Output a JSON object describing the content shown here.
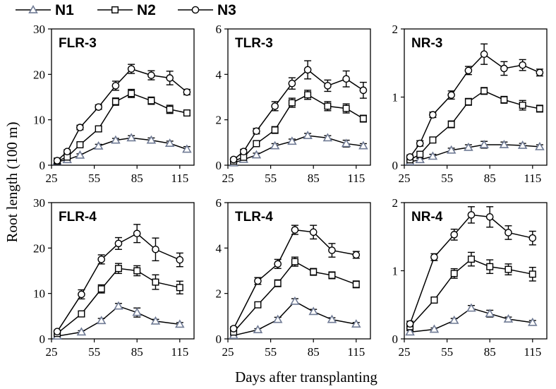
{
  "figure": {
    "ylabel": "Root length (100 m)",
    "xlabel": "Days after transplanting",
    "legend": [
      {
        "name": "N1",
        "marker": "triangle",
        "color": "#6f7a94"
      },
      {
        "name": "N2",
        "marker": "square",
        "color": "#000000"
      },
      {
        "name": "N3",
        "marker": "circle",
        "color": "#000000"
      }
    ]
  },
  "chart_data": [
    {
      "type": "line",
      "title": "FLR-3",
      "xlim": [
        25,
        125
      ],
      "xticks": [
        25,
        55,
        85,
        115
      ],
      "ylim": [
        0,
        30
      ],
      "yticks": [
        0,
        10,
        20,
        30
      ],
      "x": [
        29,
        36,
        45,
        58,
        70,
        81,
        95,
        108,
        120
      ],
      "series": [
        {
          "name": "N1",
          "values": [
            0.8,
            1.2,
            2.2,
            4.2,
            5.5,
            6.0,
            5.5,
            4.8,
            3.5
          ],
          "errors": [
            0.2,
            0.3,
            0.3,
            0.4,
            0.4,
            0.5,
            0.5,
            0.5,
            0.6
          ]
        },
        {
          "name": "N2",
          "values": [
            0.9,
            1.8,
            4.5,
            8.0,
            14.0,
            15.8,
            14.2,
            12.3,
            11.5
          ],
          "errors": [
            0.2,
            0.3,
            0.4,
            0.6,
            0.8,
            0.9,
            0.8,
            0.9,
            0.6
          ]
        },
        {
          "name": "N3",
          "values": [
            1.0,
            3.0,
            8.3,
            12.8,
            17.5,
            21.2,
            19.8,
            19.2,
            16.1
          ],
          "errors": [
            0.2,
            0.4,
            0.5,
            0.5,
            1.0,
            1.0,
            1.0,
            1.5,
            0.6
          ]
        }
      ]
    },
    {
      "type": "line",
      "title": "TLR-3",
      "xlim": [
        25,
        125
      ],
      "xticks": [
        25,
        55,
        85,
        115
      ],
      "ylim": [
        0,
        6
      ],
      "yticks": [
        0,
        2,
        4,
        6
      ],
      "x": [
        29,
        36,
        45,
        58,
        70,
        81,
        95,
        108,
        120
      ],
      "series": [
        {
          "name": "N1",
          "values": [
            0.1,
            0.25,
            0.45,
            0.85,
            1.05,
            1.3,
            1.2,
            0.95,
            0.85
          ],
          "errors": [
            0.05,
            0.05,
            0.08,
            0.1,
            0.1,
            0.1,
            0.1,
            0.15,
            0.1
          ]
        },
        {
          "name": "N2",
          "values": [
            0.18,
            0.35,
            0.95,
            1.55,
            2.75,
            3.1,
            2.6,
            2.5,
            2.05
          ],
          "errors": [
            0.05,
            0.08,
            0.1,
            0.15,
            0.2,
            0.2,
            0.2,
            0.2,
            0.15
          ]
        },
        {
          "name": "N3",
          "values": [
            0.25,
            0.6,
            1.5,
            2.6,
            3.6,
            4.2,
            3.5,
            3.8,
            3.3
          ],
          "errors": [
            0.05,
            0.1,
            0.12,
            0.2,
            0.25,
            0.4,
            0.25,
            0.35,
            0.35
          ]
        }
      ]
    },
    {
      "type": "line",
      "title": "NR-3",
      "xlim": [
        25,
        125
      ],
      "xticks": [
        25,
        55,
        85,
        115
      ],
      "ylim": [
        0,
        2
      ],
      "yticks": [
        0,
        1,
        2
      ],
      "x": [
        29,
        36,
        45,
        58,
        70,
        81,
        95,
        108,
        120
      ],
      "series": [
        {
          "name": "N1",
          "values": [
            0.05,
            0.08,
            0.13,
            0.22,
            0.26,
            0.3,
            0.3,
            0.29,
            0.27
          ],
          "errors": [
            0.02,
            0.02,
            0.03,
            0.03,
            0.04,
            0.05,
            0.04,
            0.03,
            0.03
          ]
        },
        {
          "name": "N2",
          "values": [
            0.08,
            0.16,
            0.37,
            0.6,
            0.93,
            1.09,
            0.96,
            0.88,
            0.83
          ],
          "errors": [
            0.02,
            0.03,
            0.04,
            0.05,
            0.05,
            0.05,
            0.05,
            0.07,
            0.05
          ]
        },
        {
          "name": "N3",
          "values": [
            0.12,
            0.32,
            0.74,
            1.03,
            1.39,
            1.63,
            1.42,
            1.47,
            1.36
          ],
          "errors": [
            0.03,
            0.04,
            0.04,
            0.06,
            0.06,
            0.15,
            0.1,
            0.08,
            0.05
          ]
        }
      ]
    },
    {
      "type": "line",
      "title": "FLR-4",
      "xlim": [
        25,
        125
      ],
      "xticks": [
        25,
        55,
        85,
        115
      ],
      "ylim": [
        0,
        30
      ],
      "yticks": [
        0,
        10,
        20,
        30
      ],
      "x": [
        29,
        46,
        60,
        72,
        85,
        98,
        115
      ],
      "series": [
        {
          "name": "N1",
          "values": [
            0.6,
            1.5,
            4.0,
            7.2,
            5.8,
            3.9,
            3.2
          ],
          "errors": [
            0.2,
            0.3,
            0.5,
            0.6,
            1.0,
            0.4,
            0.4
          ]
        },
        {
          "name": "N2",
          "values": [
            1.2,
            5.5,
            11.0,
            15.5,
            15.0,
            12.5,
            11.3
          ],
          "errors": [
            0.3,
            0.6,
            0.9,
            1.1,
            1.1,
            1.6,
            1.4
          ]
        },
        {
          "name": "N3",
          "values": [
            1.6,
            9.8,
            17.5,
            21.0,
            23.2,
            19.7,
            17.4
          ],
          "errors": [
            0.3,
            1.0,
            1.0,
            1.3,
            2.0,
            2.5,
            1.5
          ]
        }
      ]
    },
    {
      "type": "line",
      "title": "TLR-4",
      "xlim": [
        25,
        125
      ],
      "xticks": [
        25,
        55,
        85,
        115
      ],
      "ylim": [
        0,
        6
      ],
      "yticks": [
        0,
        2,
        4,
        6
      ],
      "x": [
        29,
        46,
        60,
        72,
        85,
        98,
        115
      ],
      "series": [
        {
          "name": "N1",
          "values": [
            0.15,
            0.4,
            0.85,
            1.65,
            1.2,
            0.85,
            0.65
          ],
          "errors": [
            0.04,
            0.05,
            0.1,
            0.12,
            0.1,
            0.08,
            0.07
          ]
        },
        {
          "name": "N2",
          "values": [
            0.3,
            1.5,
            2.45,
            3.4,
            2.95,
            2.8,
            2.4
          ],
          "errors": [
            0.05,
            0.1,
            0.15,
            0.2,
            0.15,
            0.15,
            0.15
          ]
        },
        {
          "name": "N3",
          "values": [
            0.45,
            2.55,
            3.3,
            4.8,
            4.7,
            3.9,
            3.7
          ],
          "errors": [
            0.08,
            0.15,
            0.2,
            0.2,
            0.3,
            0.3,
            0.15
          ]
        }
      ]
    },
    {
      "type": "line",
      "title": "NR-4",
      "xlim": [
        25,
        125
      ],
      "xticks": [
        25,
        55,
        85,
        115
      ],
      "ylim": [
        0,
        2
      ],
      "yticks": [
        0,
        1,
        2
      ],
      "x": [
        29,
        46,
        60,
        72,
        85,
        98,
        115
      ],
      "series": [
        {
          "name": "N1",
          "values": [
            0.1,
            0.14,
            0.27,
            0.45,
            0.37,
            0.29,
            0.24
          ],
          "errors": [
            0.02,
            0.02,
            0.03,
            0.04,
            0.05,
            0.03,
            0.03
          ]
        },
        {
          "name": "N2",
          "values": [
            0.18,
            0.57,
            0.96,
            1.17,
            1.06,
            1.02,
            0.95
          ],
          "errors": [
            0.03,
            0.04,
            0.07,
            0.1,
            0.1,
            0.08,
            0.1
          ]
        },
        {
          "name": "N3",
          "values": [
            0.22,
            1.2,
            1.53,
            1.82,
            1.79,
            1.56,
            1.48
          ],
          "errors": [
            0.04,
            0.05,
            0.08,
            0.12,
            0.15,
            0.1,
            0.1
          ]
        }
      ]
    }
  ]
}
